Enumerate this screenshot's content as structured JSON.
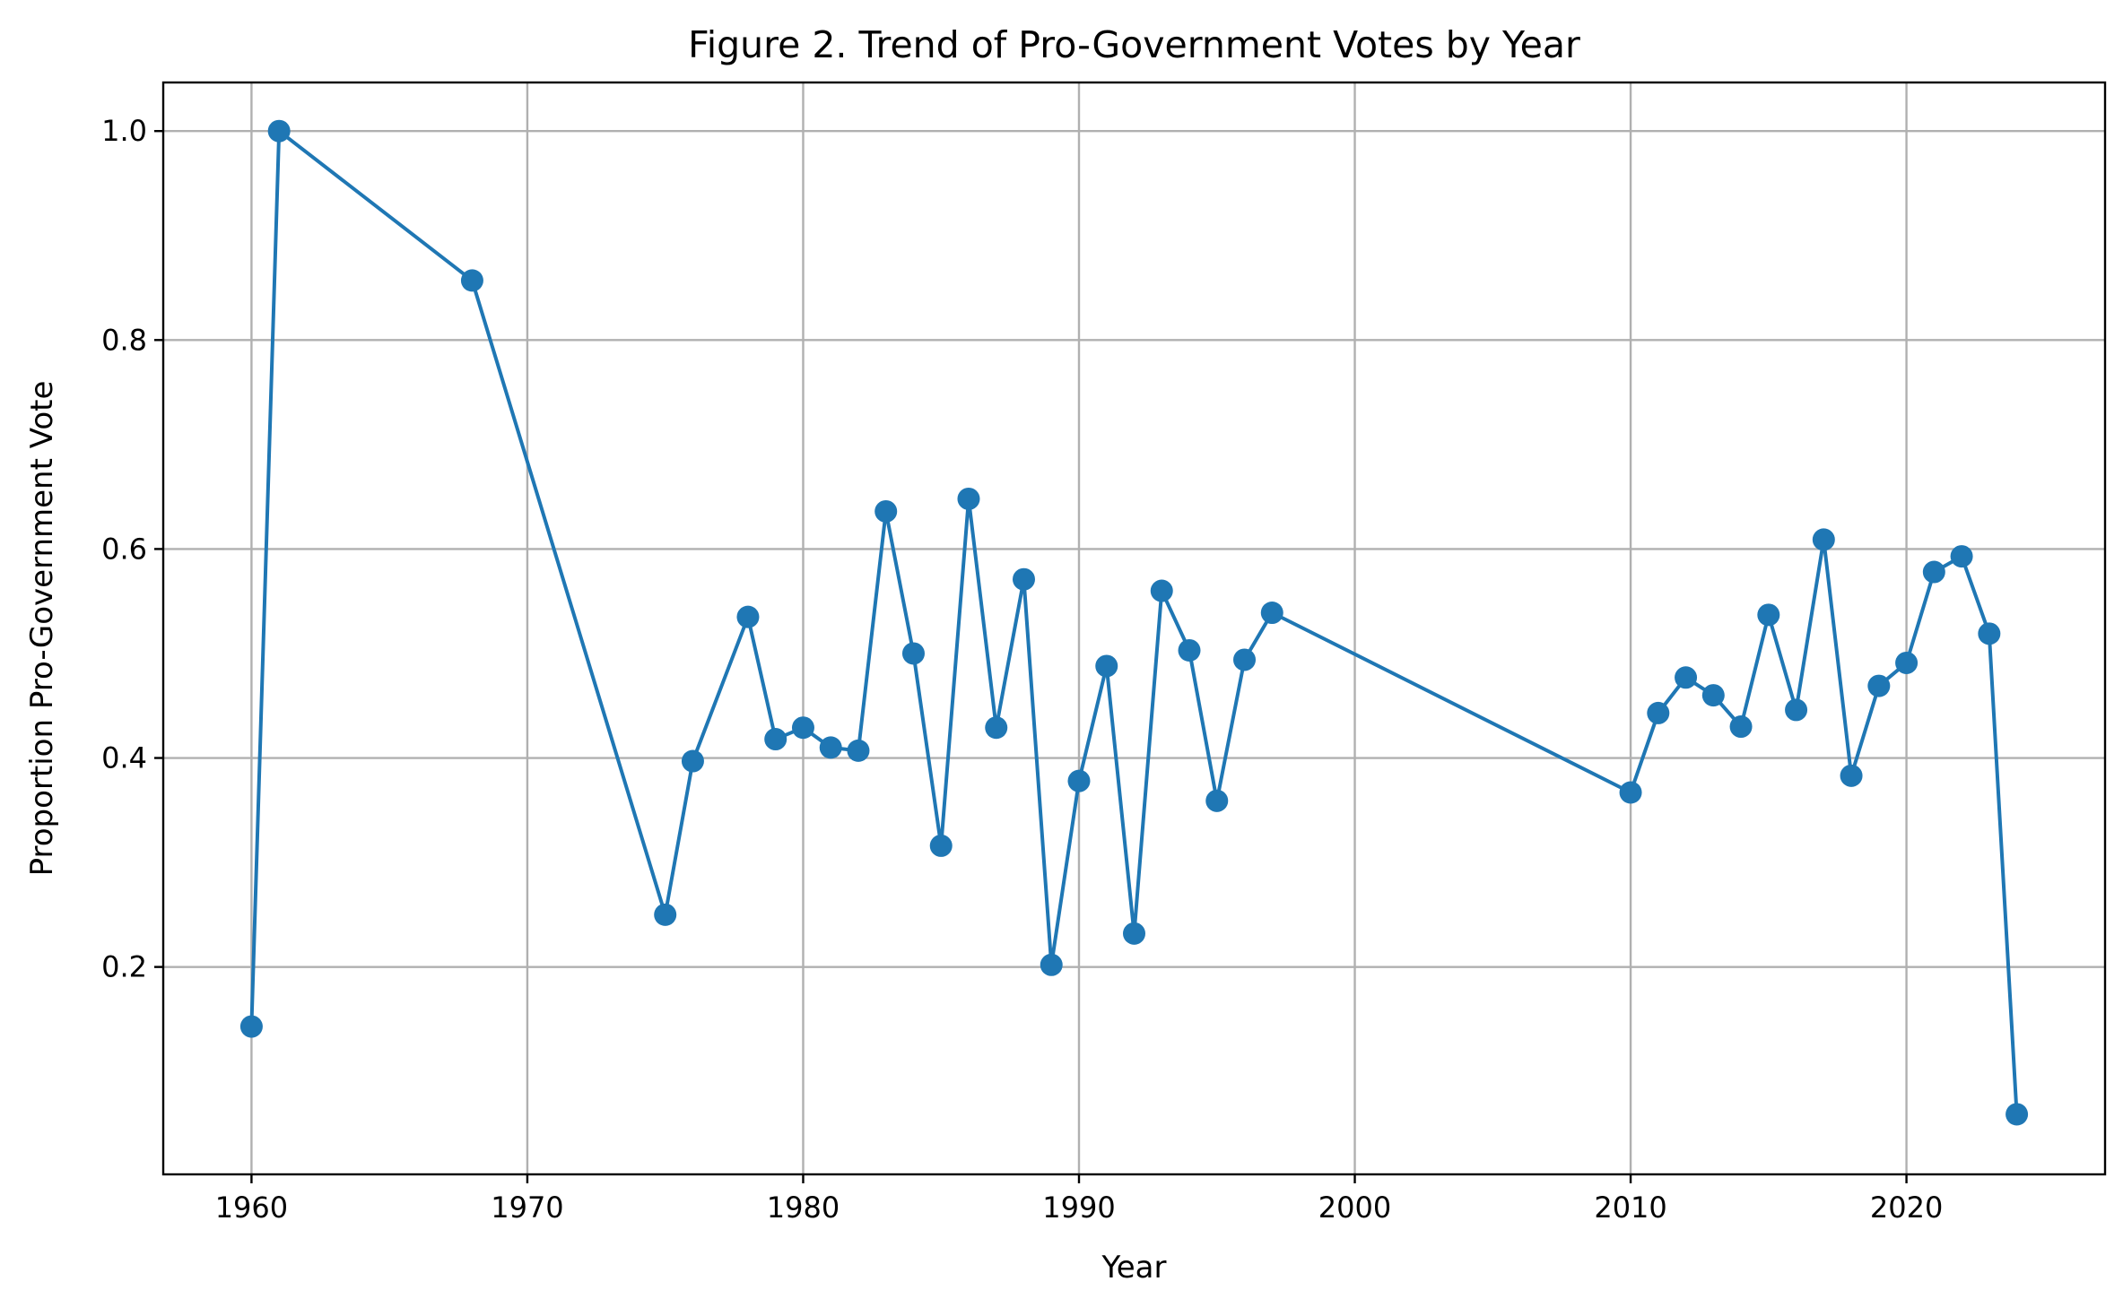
{
  "chart_data": {
    "type": "line",
    "title": "Figure 2. Trend of Pro-Government Votes by Year",
    "xlabel": "Year",
    "ylabel": "Proportion Pro-Government Vote",
    "xlim": [
      1956.8,
      2027.2
    ],
    "ylim": [
      0.0015,
      1.0465
    ],
    "x_ticks": [
      1960,
      1970,
      1980,
      1990,
      2000,
      2010,
      2020
    ],
    "y_ticks": [
      0.2,
      0.4,
      0.6,
      0.8,
      1.0
    ],
    "y_tick_labels": [
      "0.2",
      "0.4",
      "0.6",
      "0.8",
      "1.0"
    ],
    "grid": true,
    "color": "#1f77b4",
    "series": [
      {
        "x": [
          1960,
          1961,
          1968,
          1975,
          1976,
          1978,
          1979,
          1980,
          1981,
          1982,
          1983,
          1984,
          1985,
          1986,
          1987,
          1988,
          1989,
          1990,
          1991,
          1992,
          1993,
          1994,
          1995,
          1996,
          1997,
          2010,
          2011,
          2012,
          2013,
          2014,
          2015,
          2016,
          2017,
          2018,
          2019,
          2020,
          2021,
          2022,
          2023,
          2024
        ],
        "y": [
          0.143,
          1.0,
          0.857,
          0.25,
          0.397,
          0.535,
          0.418,
          0.429,
          0.41,
          0.407,
          0.636,
          0.5,
          0.316,
          0.648,
          0.429,
          0.571,
          0.202,
          0.378,
          0.488,
          0.232,
          0.56,
          0.503,
          0.359,
          0.494,
          0.539,
          0.367,
          0.443,
          0.477,
          0.46,
          0.43,
          0.537,
          0.446,
          0.609,
          0.383,
          0.469,
          0.491,
          0.578,
          0.593,
          0.519,
          0.059
        ]
      }
    ]
  }
}
